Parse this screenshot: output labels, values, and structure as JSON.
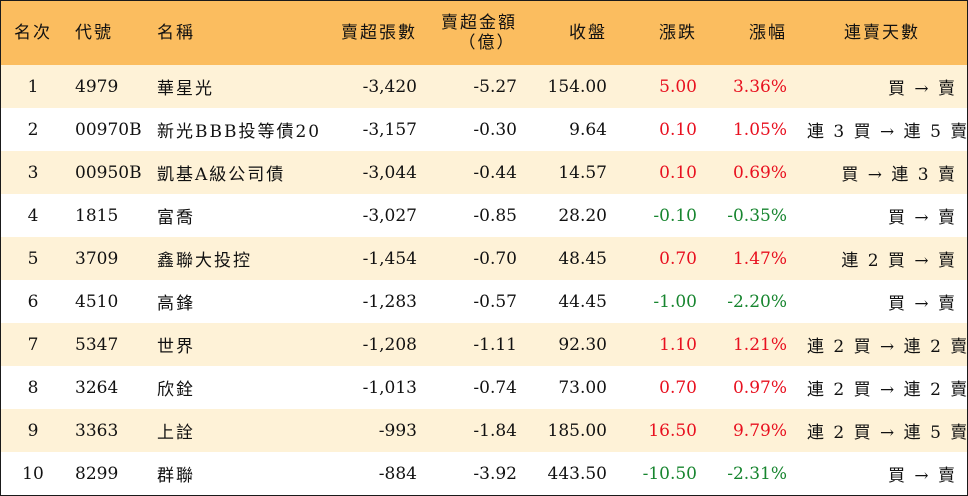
{
  "colors": {
    "header_bg": "#fbbd5f",
    "alt_row_bg": "#fef2d7",
    "up": "#e8101f",
    "down": "#17852f"
  },
  "headers": {
    "rank": "名次",
    "code": "代號",
    "name": "名稱",
    "net_sell_shares": "賣超張數",
    "net_sell_amount_line1": "賣超金額",
    "net_sell_amount_line2": "（億）",
    "close": "收盤",
    "change": "漲跌",
    "change_pct": "漲幅",
    "consecutive_days": "連賣天數"
  },
  "rows": [
    {
      "rank": "1",
      "code": "4979",
      "name": "華星光",
      "shares": "-3,420",
      "amount": "-5.27",
      "close": "154.00",
      "change": "5.00",
      "pct": "3.36%",
      "dir": "up",
      "days": "買 → 賣"
    },
    {
      "rank": "2",
      "code": "00970B",
      "name": "新光BBB投等債20",
      "shares": "-3,157",
      "amount": "-0.30",
      "close": "9.64",
      "change": "0.10",
      "pct": "1.05%",
      "dir": "up",
      "days": "連 3 買 → 連 5 賣"
    },
    {
      "rank": "3",
      "code": "00950B",
      "name": "凱基A級公司債",
      "shares": "-3,044",
      "amount": "-0.44",
      "close": "14.57",
      "change": "0.10",
      "pct": "0.69%",
      "dir": "up",
      "days": "買 → 連 3 賣"
    },
    {
      "rank": "4",
      "code": "1815",
      "name": "富喬",
      "shares": "-3,027",
      "amount": "-0.85",
      "close": "28.20",
      "change": "-0.10",
      "pct": "-0.35%",
      "dir": "down",
      "days": "買 → 賣"
    },
    {
      "rank": "5",
      "code": "3709",
      "name": "鑫聯大投控",
      "shares": "-1,454",
      "amount": "-0.70",
      "close": "48.45",
      "change": "0.70",
      "pct": "1.47%",
      "dir": "up",
      "days": "連 2 買 → 賣"
    },
    {
      "rank": "6",
      "code": "4510",
      "name": "高鋒",
      "shares": "-1,283",
      "amount": "-0.57",
      "close": "44.45",
      "change": "-1.00",
      "pct": "-2.20%",
      "dir": "down",
      "days": "買 → 賣"
    },
    {
      "rank": "7",
      "code": "5347",
      "name": "世界",
      "shares": "-1,208",
      "amount": "-1.11",
      "close": "92.30",
      "change": "1.10",
      "pct": "1.21%",
      "dir": "up",
      "days": "連 2 買 → 連 2 賣"
    },
    {
      "rank": "8",
      "code": "3264",
      "name": "欣銓",
      "shares": "-1,013",
      "amount": "-0.74",
      "close": "73.00",
      "change": "0.70",
      "pct": "0.97%",
      "dir": "up",
      "days": "連 2 買 → 連 2 賣"
    },
    {
      "rank": "9",
      "code": "3363",
      "name": "上詮",
      "shares": "-993",
      "amount": "-1.84",
      "close": "185.00",
      "change": "16.50",
      "pct": "9.79%",
      "dir": "up",
      "days": "連 2 買 → 連 5 賣"
    },
    {
      "rank": "10",
      "code": "8299",
      "name": "群聯",
      "shares": "-884",
      "amount": "-3.92",
      "close": "443.50",
      "change": "-10.50",
      "pct": "-2.31%",
      "dir": "down",
      "days": "買 → 賣"
    }
  ]
}
